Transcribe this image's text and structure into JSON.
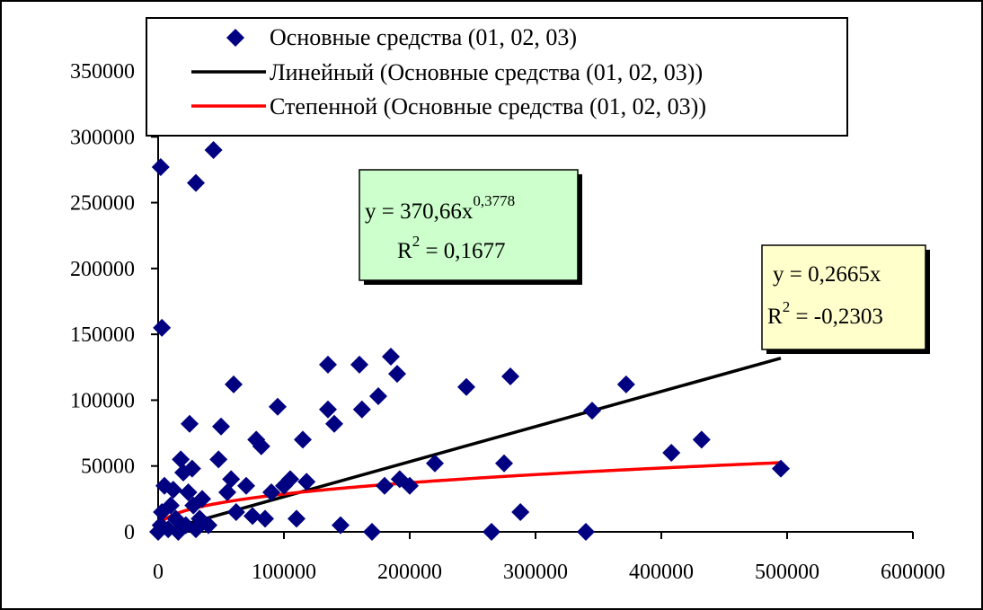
{
  "chart_data": {
    "type": "scatter",
    "title": "",
    "xlabel": "",
    "ylabel": "",
    "xlim": [
      0,
      600000
    ],
    "ylim": [
      0,
      350000
    ],
    "x_ticks": [
      "0",
      "100000",
      "200000",
      "300000",
      "400000",
      "500000",
      "600000"
    ],
    "y_ticks": [
      "0",
      "50000",
      "100000",
      "150000",
      "200000",
      "250000",
      "300000",
      "350000"
    ],
    "grid": false,
    "legend_position": "top",
    "series": [
      {
        "name": "Основные средства (01, 02, 03)",
        "type": "scatter",
        "marker": "diamond",
        "color": "#000080",
        "points": [
          [
            2000,
            277000
          ],
          [
            3000,
            155000
          ],
          [
            30000,
            265000
          ],
          [
            44000,
            290000
          ],
          [
            0,
            0
          ],
          [
            2000,
            5000
          ],
          [
            3000,
            15000
          ],
          [
            5000,
            35000
          ],
          [
            8000,
            2000
          ],
          [
            10000,
            20000
          ],
          [
            12000,
            32000
          ],
          [
            14000,
            10000
          ],
          [
            16000,
            0
          ],
          [
            18000,
            55000
          ],
          [
            20000,
            45000
          ],
          [
            22000,
            5000
          ],
          [
            24000,
            30000
          ],
          [
            25000,
            82000
          ],
          [
            27000,
            48000
          ],
          [
            28000,
            20000
          ],
          [
            30000,
            2000
          ],
          [
            33000,
            10000
          ],
          [
            35000,
            25000
          ],
          [
            40000,
            5000
          ],
          [
            48000,
            55000
          ],
          [
            50000,
            80000
          ],
          [
            55000,
            30000
          ],
          [
            58000,
            40000
          ],
          [
            60000,
            112000
          ],
          [
            62000,
            15000
          ],
          [
            70000,
            35000
          ],
          [
            75000,
            12000
          ],
          [
            78000,
            70000
          ],
          [
            82000,
            65000
          ],
          [
            85000,
            10000
          ],
          [
            90000,
            30000
          ],
          [
            95000,
            95000
          ],
          [
            100000,
            35000
          ],
          [
            105000,
            40000
          ],
          [
            110000,
            10000
          ],
          [
            115000,
            70000
          ],
          [
            118000,
            38000
          ],
          [
            135000,
            127000
          ],
          [
            135000,
            93000
          ],
          [
            140000,
            82000
          ],
          [
            145000,
            5000
          ],
          [
            160000,
            127000
          ],
          [
            162000,
            93000
          ],
          [
            170000,
            0
          ],
          [
            175000,
            103000
          ],
          [
            180000,
            35000
          ],
          [
            185000,
            133000
          ],
          [
            190000,
            120000
          ],
          [
            192000,
            40000
          ],
          [
            200000,
            35000
          ],
          [
            220000,
            52000
          ],
          [
            245000,
            110000
          ],
          [
            265000,
            0
          ],
          [
            275000,
            52000
          ],
          [
            280000,
            118000
          ],
          [
            288000,
            15000
          ],
          [
            340000,
            0
          ],
          [
            345000,
            92000
          ],
          [
            372000,
            112000
          ],
          [
            408000,
            60000
          ],
          [
            432000,
            70000
          ],
          [
            495000,
            48000
          ]
        ]
      },
      {
        "name": "Линейный (Основные средства (01, 02, 03))",
        "type": "trendline",
        "color": "#000000",
        "slope": 0.2665,
        "x_range": [
          0,
          495000
        ]
      },
      {
        "name": "Степенной (Основные средства (01, 02, 03))",
        "type": "trendline",
        "color": "#ff0000",
        "coef": 370.66,
        "exponent": 0.3778,
        "x_range": [
          1,
          495000
        ]
      }
    ],
    "annotations": {
      "power_equation": {
        "main": "y = 370,66x",
        "sup": "0,3778",
        "r2_prefix": "R",
        "r2_sup": "2",
        "r2_value": " = 0,1677",
        "background": "#ccffcc"
      },
      "linear_equation": {
        "main": "y = 0,2665x",
        "r2_prefix": "R",
        "r2_sup": "2",
        "r2_value": " = -0,2303",
        "background": "#ffffcc"
      }
    }
  }
}
